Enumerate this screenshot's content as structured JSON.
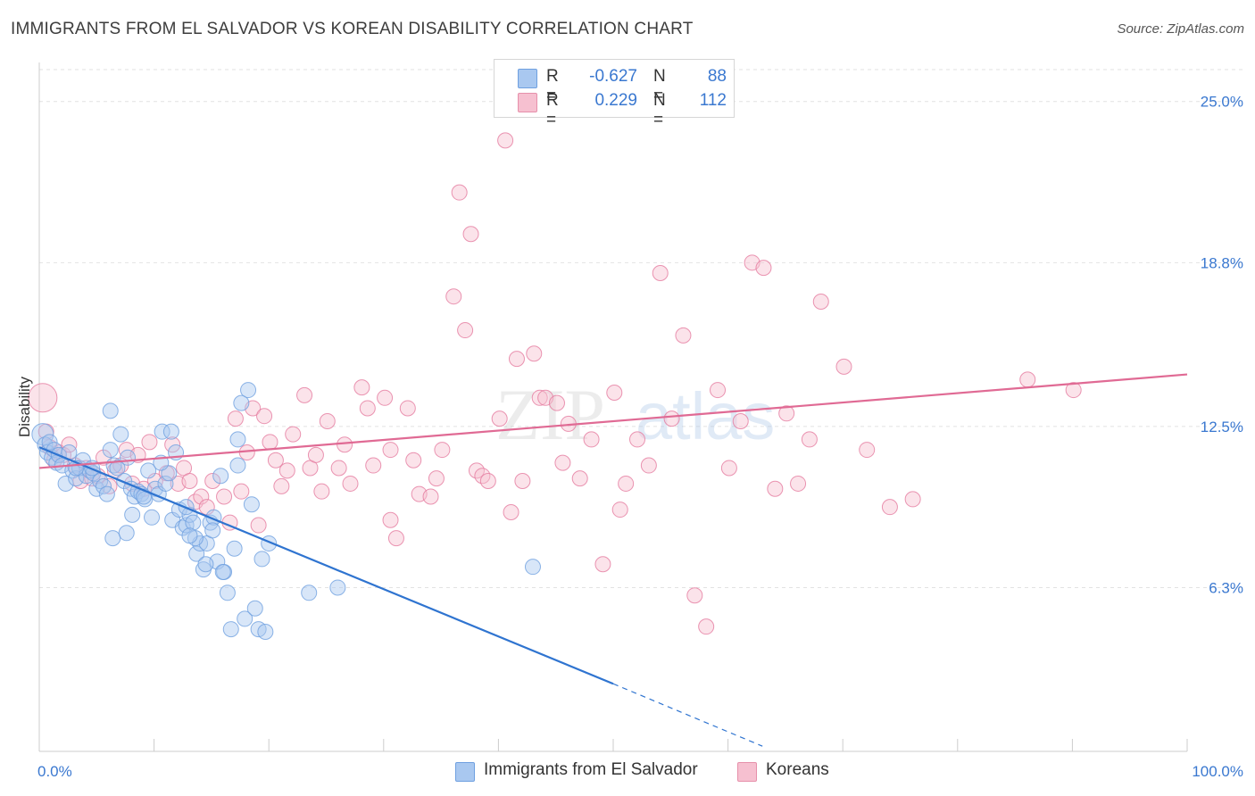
{
  "header": {
    "title": "IMMIGRANTS FROM EL SALVADOR VS KOREAN DISABILITY CORRELATION CHART",
    "source": "Source: ZipAtlas.com"
  },
  "legend": {
    "rows": [
      {
        "r_label": "R =",
        "r_value": "-0.627",
        "n_label": "N =",
        "n_value": "88",
        "color": "#a9c8f0",
        "border": "#6fa0e0"
      },
      {
        "r_label": "R =",
        "r_value": "0.229",
        "n_label": "N =",
        "n_value": "112",
        "color": "#f6c0d0",
        "border": "#e690ab"
      }
    ]
  },
  "bottom_legend": [
    {
      "label": "Immigrants from El Salvador",
      "color": "#a9c8f0",
      "border": "#6fa0e0"
    },
    {
      "label": "Koreans",
      "color": "#f6c0d0",
      "border": "#e690ab"
    }
  ],
  "watermark": {
    "zip": "ZIP",
    "atlas": "atlas"
  },
  "chart_data": {
    "type": "scatter",
    "title": "IMMIGRANTS FROM EL SALVADOR VS KOREAN DISABILITY CORRELATION CHART",
    "xlabel": "",
    "ylabel": "Disability",
    "xlim": [
      0,
      100
    ],
    "ylim": [
      0,
      26.5
    ],
    "x_tick_labels": [
      "0.0%",
      "100.0%"
    ],
    "y_ticks": [
      6.3,
      12.5,
      18.8,
      25.0
    ],
    "y_tick_labels": [
      "6.3%",
      "12.5%",
      "18.8%",
      "25.0%"
    ],
    "grid": true,
    "series": [
      {
        "name": "Immigrants from El Salvador",
        "color": "#6fa0e0",
        "fill": "#a9c8f0",
        "trend": {
          "x": [
            0,
            50
          ],
          "y": [
            11.7,
            2.6
          ],
          "dashed_to": [
            63,
            0.2
          ]
        },
        "points": [
          [
            0.3,
            12.2
          ],
          [
            0.5,
            11.8
          ],
          [
            0.7,
            11.5
          ],
          [
            0.9,
            11.9
          ],
          [
            1.1,
            11.3
          ],
          [
            1.3,
            11.6
          ],
          [
            1.5,
            11.1
          ],
          [
            1.7,
            11.4
          ],
          [
            2.0,
            11.0
          ],
          [
            2.3,
            10.3
          ],
          [
            2.6,
            11.5
          ],
          [
            2.9,
            10.8
          ],
          [
            3.2,
            10.5
          ],
          [
            3.5,
            10.9
          ],
          [
            3.8,
            11.2
          ],
          [
            4.1,
            10.6
          ],
          [
            4.4,
            10.8
          ],
          [
            4.7,
            10.7
          ],
          [
            5.0,
            10.1
          ],
          [
            5.3,
            10.4
          ],
          [
            5.6,
            10.2
          ],
          [
            5.9,
            9.9
          ],
          [
            6.2,
            11.6
          ],
          [
            6.5,
            11.0
          ],
          [
            6.8,
            10.9
          ],
          [
            7.1,
            12.2
          ],
          [
            7.4,
            10.4
          ],
          [
            7.7,
            11.3
          ],
          [
            8.0,
            10.1
          ],
          [
            8.3,
            9.8
          ],
          [
            8.6,
            10.0
          ],
          [
            8.9,
            9.9
          ],
          [
            9.2,
            9.7
          ],
          [
            9.5,
            10.8
          ],
          [
            9.8,
            9.0
          ],
          [
            10.1,
            10.1
          ],
          [
            10.4,
            9.9
          ],
          [
            10.7,
            12.3
          ],
          [
            11.0,
            10.3
          ],
          [
            11.3,
            10.7
          ],
          [
            11.6,
            8.9
          ],
          [
            11.9,
            11.5
          ],
          [
            12.2,
            9.3
          ],
          [
            12.5,
            8.6
          ],
          [
            12.8,
            8.7
          ],
          [
            13.1,
            9.1
          ],
          [
            13.4,
            8.8
          ],
          [
            13.7,
            7.6
          ],
          [
            14.0,
            8.0
          ],
          [
            14.3,
            7.0
          ],
          [
            14.6,
            8.0
          ],
          [
            14.9,
            8.8
          ],
          [
            15.2,
            9.0
          ],
          [
            15.5,
            7.3
          ],
          [
            15.8,
            10.6
          ],
          [
            16.1,
            6.9
          ],
          [
            16.4,
            6.1
          ],
          [
            16.7,
            4.7
          ],
          [
            17.0,
            7.8
          ],
          [
            17.3,
            11.0
          ],
          [
            17.6,
            13.4
          ],
          [
            17.9,
            5.1
          ],
          [
            18.2,
            13.9
          ],
          [
            18.5,
            9.5
          ],
          [
            18.8,
            5.5
          ],
          [
            19.1,
            4.7
          ],
          [
            19.4,
            7.4
          ],
          [
            19.7,
            4.6
          ],
          [
            20.0,
            8.0
          ],
          [
            23.5,
            6.1
          ],
          [
            26.0,
            6.3
          ],
          [
            43.0,
            7.1
          ],
          [
            6.4,
            8.2
          ],
          [
            7.6,
            8.4
          ],
          [
            8.1,
            9.1
          ],
          [
            9.1,
            9.8
          ],
          [
            10.6,
            11.1
          ],
          [
            12.8,
            9.4
          ],
          [
            13.6,
            8.2
          ],
          [
            14.5,
            7.2
          ],
          [
            3.2,
            10.9
          ],
          [
            4.6,
            10.9
          ],
          [
            6.2,
            13.1
          ],
          [
            11.5,
            12.3
          ],
          [
            13.1,
            8.3
          ],
          [
            15.1,
            8.5
          ],
          [
            16.0,
            6.9
          ],
          [
            17.3,
            12.0
          ]
        ]
      },
      {
        "name": "Koreans",
        "color": "#e57a9f",
        "fill": "#f6c0d0",
        "trend": {
          "x": [
            0,
            100
          ],
          "y": [
            10.9,
            14.5
          ]
        },
        "points": [
          [
            0.3,
            13.6
          ],
          [
            0.6,
            12.3
          ],
          [
            0.9,
            11.7
          ],
          [
            1.3,
            11.2
          ],
          [
            1.7,
            11.5
          ],
          [
            2.1,
            11.4
          ],
          [
            2.6,
            11.8
          ],
          [
            3.1,
            11.0
          ],
          [
            3.6,
            10.4
          ],
          [
            4.1,
            10.9
          ],
          [
            4.6,
            10.5
          ],
          [
            5.1,
            10.6
          ],
          [
            5.6,
            11.3
          ],
          [
            6.1,
            10.2
          ],
          [
            6.6,
            10.8
          ],
          [
            7.1,
            11.0
          ],
          [
            7.6,
            11.6
          ],
          [
            8.1,
            10.3
          ],
          [
            8.6,
            11.4
          ],
          [
            9.1,
            10.1
          ],
          [
            9.6,
            11.9
          ],
          [
            10.1,
            10.4
          ],
          [
            11.1,
            10.7
          ],
          [
            11.6,
            11.8
          ],
          [
            12.1,
            10.3
          ],
          [
            12.6,
            10.9
          ],
          [
            13.1,
            10.4
          ],
          [
            13.6,
            9.6
          ],
          [
            14.1,
            9.8
          ],
          [
            14.6,
            9.4
          ],
          [
            15.1,
            10.4
          ],
          [
            16.1,
            9.8
          ],
          [
            16.6,
            8.8
          ],
          [
            17.1,
            12.8
          ],
          [
            17.6,
            10.0
          ],
          [
            18.1,
            11.5
          ],
          [
            18.6,
            13.2
          ],
          [
            19.1,
            8.7
          ],
          [
            19.6,
            12.9
          ],
          [
            20.1,
            11.9
          ],
          [
            20.6,
            11.2
          ],
          [
            21.1,
            10.2
          ],
          [
            21.6,
            10.8
          ],
          [
            22.1,
            12.2
          ],
          [
            23.1,
            13.7
          ],
          [
            23.6,
            10.9
          ],
          [
            24.1,
            11.4
          ],
          [
            24.6,
            10.0
          ],
          [
            25.1,
            12.7
          ],
          [
            26.1,
            10.9
          ],
          [
            26.6,
            11.8
          ],
          [
            27.1,
            10.3
          ],
          [
            28.1,
            14.0
          ],
          [
            28.6,
            13.2
          ],
          [
            29.1,
            11.0
          ],
          [
            30.1,
            13.6
          ],
          [
            30.6,
            11.6
          ],
          [
            31.1,
            8.2
          ],
          [
            32.1,
            13.2
          ],
          [
            32.6,
            11.2
          ],
          [
            33.1,
            9.9
          ],
          [
            34.1,
            9.8
          ],
          [
            34.6,
            10.5
          ],
          [
            35.1,
            11.6
          ],
          [
            36.1,
            17.5
          ],
          [
            36.6,
            21.5
          ],
          [
            37.1,
            16.2
          ],
          [
            37.6,
            19.9
          ],
          [
            38.1,
            10.8
          ],
          [
            38.6,
            10.6
          ],
          [
            39.1,
            10.4
          ],
          [
            40.1,
            12.8
          ],
          [
            41.1,
            9.2
          ],
          [
            41.6,
            15.1
          ],
          [
            42.1,
            10.4
          ],
          [
            43.1,
            15.3
          ],
          [
            43.6,
            13.6
          ],
          [
            44.1,
            13.6
          ],
          [
            45.1,
            13.4
          ],
          [
            46.1,
            12.6
          ],
          [
            47.1,
            10.5
          ],
          [
            48.1,
            12.0
          ],
          [
            49.1,
            7.2
          ],
          [
            50.1,
            13.8
          ],
          [
            50.6,
            9.3
          ],
          [
            51.1,
            10.3
          ],
          [
            52.1,
            12.0
          ],
          [
            53.1,
            11.0
          ],
          [
            54.1,
            18.4
          ],
          [
            55.1,
            12.8
          ],
          [
            56.1,
            16.0
          ],
          [
            57.1,
            6.0
          ],
          [
            58.1,
            4.8
          ],
          [
            59.1,
            13.9
          ],
          [
            60.1,
            10.9
          ],
          [
            61.1,
            12.7
          ],
          [
            62.1,
            18.8
          ],
          [
            63.1,
            18.6
          ],
          [
            64.1,
            10.1
          ],
          [
            65.1,
            13.0
          ],
          [
            66.1,
            10.3
          ],
          [
            67.1,
            12.0
          ],
          [
            68.1,
            17.3
          ],
          [
            70.1,
            14.8
          ],
          [
            72.1,
            11.6
          ],
          [
            74.1,
            9.4
          ],
          [
            76.1,
            9.7
          ],
          [
            86.1,
            14.3
          ],
          [
            90.1,
            13.9
          ],
          [
            40.6,
            23.5
          ],
          [
            45.6,
            11.1
          ],
          [
            30.6,
            8.9
          ]
        ]
      }
    ]
  }
}
